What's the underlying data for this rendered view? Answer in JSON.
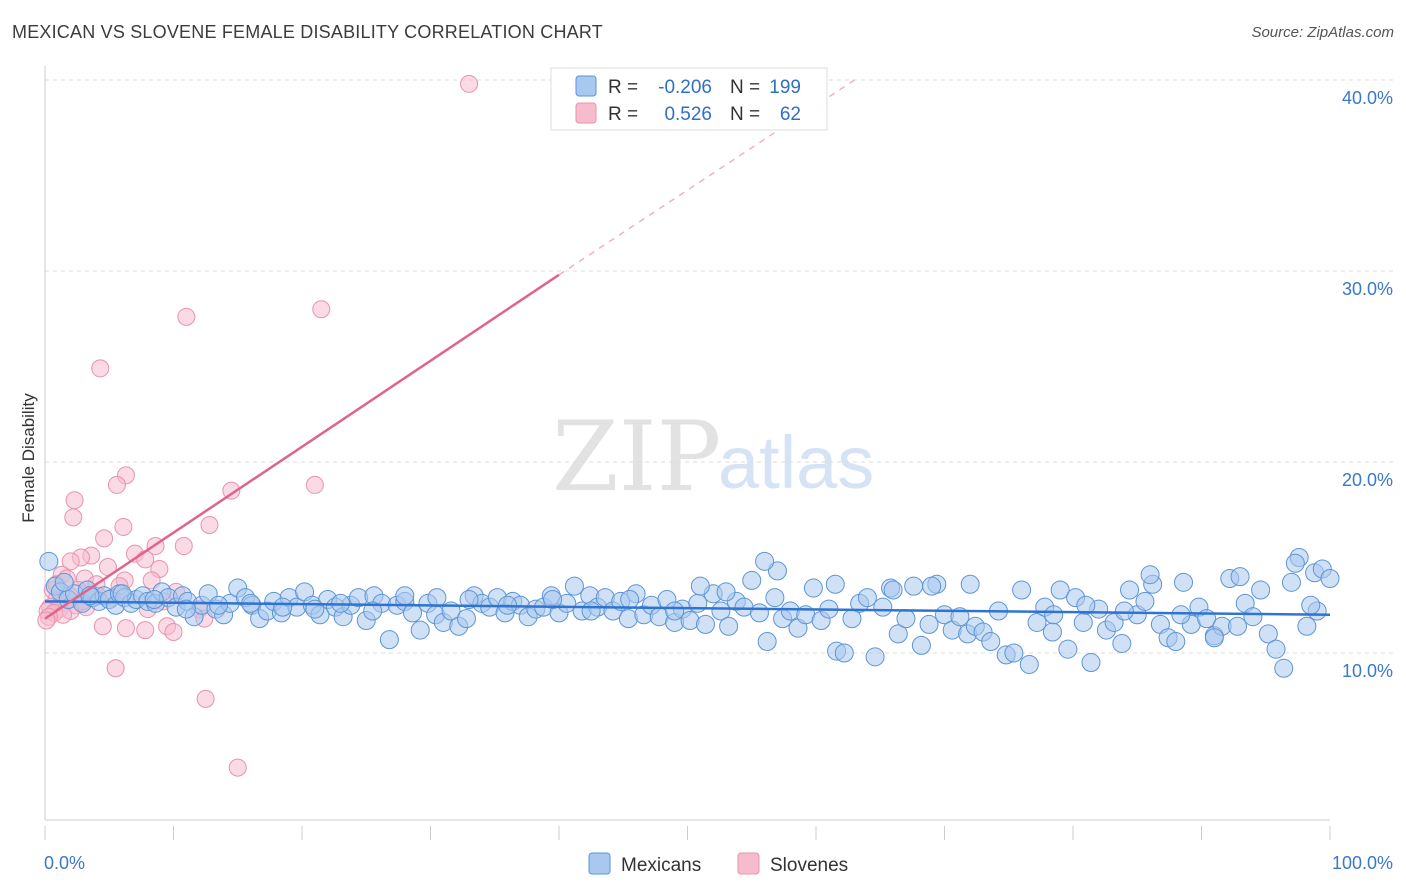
{
  "header": {
    "title": "MEXICAN VS SLOVENE FEMALE DISABILITY CORRELATION CHART",
    "source": "Source: ZipAtlas.com"
  },
  "watermark": {
    "zip": "ZIP",
    "atlas": "atlas"
  },
  "legend_box": {
    "row1": {
      "r_label": "R =",
      "r_value": "-0.206",
      "n_label": "N =",
      "n_value": "199"
    },
    "row2": {
      "r_label": "R =",
      "r_value": "0.526",
      "n_label": "N =",
      "n_value": "62"
    }
  },
  "bottom_legend": {
    "series1": "Mexicans",
    "series2": "Slovenes"
  },
  "colors": {
    "blue_fill": "#a9c8ef",
    "blue_stroke": "#5d95d6",
    "blue_line": "#2f74d0",
    "pink_fill": "#f6bccd",
    "pink_stroke": "#e893ad",
    "pink_line": "#e2628f",
    "tick_text": "#3a78c9"
  },
  "chart_data": {
    "type": "scatter",
    "title": "MEXICAN VS SLOVENE FEMALE DISABILITY CORRELATION CHART",
    "xlabel": "",
    "ylabel": "Female Disability",
    "xlim": [
      0,
      100
    ],
    "ylim": [
      3,
      42
    ],
    "x_tick_labels": [
      "0.0%",
      "100.0%"
    ],
    "y_ticks": [
      10,
      20,
      30,
      40
    ],
    "y_tick_labels": [
      "10.0%",
      "20.0%",
      "30.0%",
      "40.0%"
    ],
    "grid": true,
    "legend_position": "top-center",
    "series": [
      {
        "name": "Mexicans",
        "color": "#5d95d6",
        "R": -0.206,
        "N": 199,
        "trend": {
          "x": [
            0,
            100
          ],
          "y": [
            12.7,
            12.0
          ]
        },
        "points": [
          [
            0.3,
            14.8
          ],
          [
            0.8,
            13.5
          ],
          [
            1.2,
            13.2
          ],
          [
            1.8,
            12.8
          ],
          [
            2.3,
            13.1
          ],
          [
            2.9,
            12.6
          ],
          [
            3.3,
            13.3
          ],
          [
            3.7,
            12.9
          ],
          [
            4.2,
            12.7
          ],
          [
            4.6,
            13.0
          ],
          [
            5.0,
            12.8
          ],
          [
            5.5,
            12.5
          ],
          [
            5.8,
            13.1
          ],
          [
            6.2,
            12.9
          ],
          [
            6.7,
            12.6
          ],
          [
            7.1,
            12.8
          ],
          [
            7.6,
            13.0
          ],
          [
            8.0,
            12.7
          ],
          [
            8.6,
            12.6
          ],
          [
            9.1,
            13.2
          ],
          [
            9.6,
            12.9
          ],
          [
            10.2,
            12.4
          ],
          [
            10.7,
            13.0
          ],
          [
            11.1,
            12.7
          ],
          [
            11.6,
            11.9
          ],
          [
            12.2,
            12.5
          ],
          [
            12.7,
            13.1
          ],
          [
            13.3,
            12.3
          ],
          [
            13.9,
            12.0
          ],
          [
            14.4,
            12.6
          ],
          [
            15.0,
            13.4
          ],
          [
            15.6,
            12.9
          ],
          [
            16.1,
            12.5
          ],
          [
            16.7,
            11.8
          ],
          [
            17.3,
            12.2
          ],
          [
            17.8,
            12.7
          ],
          [
            18.4,
            12.1
          ],
          [
            19.0,
            12.9
          ],
          [
            19.6,
            12.4
          ],
          [
            20.2,
            13.2
          ],
          [
            20.8,
            12.5
          ],
          [
            21.4,
            12.0
          ],
          [
            22.0,
            12.8
          ],
          [
            22.6,
            12.4
          ],
          [
            23.2,
            11.9
          ],
          [
            23.8,
            12.5
          ],
          [
            24.4,
            12.9
          ],
          [
            25.0,
            11.7
          ],
          [
            25.6,
            13.0
          ],
          [
            26.2,
            12.6
          ],
          [
            26.8,
            10.7
          ],
          [
            27.4,
            12.5
          ],
          [
            28.0,
            12.7
          ],
          [
            28.6,
            12.1
          ],
          [
            29.2,
            11.2
          ],
          [
            29.8,
            12.6
          ],
          [
            30.4,
            12.0
          ],
          [
            31.0,
            11.6
          ],
          [
            31.6,
            12.2
          ],
          [
            32.2,
            11.4
          ],
          [
            32.8,
            11.8
          ],
          [
            33.4,
            13.0
          ],
          [
            34.0,
            12.6
          ],
          [
            34.6,
            12.4
          ],
          [
            35.2,
            12.9
          ],
          [
            35.8,
            12.1
          ],
          [
            36.4,
            12.7
          ],
          [
            37.0,
            12.5
          ],
          [
            37.6,
            11.9
          ],
          [
            38.2,
            12.3
          ],
          [
            38.8,
            12.4
          ],
          [
            39.4,
            13.0
          ],
          [
            40.0,
            12.1
          ],
          [
            40.6,
            12.6
          ],
          [
            41.2,
            13.5
          ],
          [
            41.8,
            12.2
          ],
          [
            42.4,
            13.0
          ],
          [
            43.0,
            12.4
          ],
          [
            43.6,
            12.9
          ],
          [
            44.2,
            12.2
          ],
          [
            44.8,
            12.7
          ],
          [
            45.4,
            11.8
          ],
          [
            46.0,
            13.1
          ],
          [
            46.6,
            12.0
          ],
          [
            47.2,
            12.5
          ],
          [
            47.8,
            11.9
          ],
          [
            48.4,
            12.8
          ],
          [
            49.0,
            11.6
          ],
          [
            49.6,
            12.3
          ],
          [
            50.2,
            11.7
          ],
          [
            50.8,
            12.6
          ],
          [
            51.4,
            11.5
          ],
          [
            52.0,
            13.1
          ],
          [
            52.6,
            12.2
          ],
          [
            53.2,
            11.4
          ],
          [
            53.8,
            12.7
          ],
          [
            54.4,
            12.4
          ],
          [
            55.0,
            13.8
          ],
          [
            55.6,
            12.1
          ],
          [
            56.2,
            10.6
          ],
          [
            56.8,
            12.9
          ],
          [
            57.4,
            11.8
          ],
          [
            58.0,
            12.2
          ],
          [
            58.6,
            11.3
          ],
          [
            59.2,
            12.0
          ],
          [
            59.8,
            13.4
          ],
          [
            60.4,
            11.7
          ],
          [
            61.0,
            12.3
          ],
          [
            61.6,
            10.1
          ],
          [
            62.2,
            10.0
          ],
          [
            62.8,
            11.8
          ],
          [
            63.4,
            12.6
          ],
          [
            64.0,
            12.9
          ],
          [
            64.6,
            9.8
          ],
          [
            65.2,
            12.4
          ],
          [
            65.8,
            13.4
          ],
          [
            66.4,
            11.0
          ],
          [
            67.0,
            11.8
          ],
          [
            67.6,
            13.5
          ],
          [
            68.2,
            10.4
          ],
          [
            68.8,
            11.5
          ],
          [
            69.4,
            13.6
          ],
          [
            70.0,
            12.0
          ],
          [
            70.6,
            11.2
          ],
          [
            71.2,
            11.9
          ],
          [
            71.8,
            11.0
          ],
          [
            72.4,
            11.4
          ],
          [
            73.0,
            11.1
          ],
          [
            73.6,
            10.6
          ],
          [
            74.2,
            12.2
          ],
          [
            74.8,
            9.9
          ],
          [
            75.4,
            10.0
          ],
          [
            76.0,
            13.3
          ],
          [
            76.6,
            9.4
          ],
          [
            77.2,
            11.6
          ],
          [
            77.8,
            12.4
          ],
          [
            78.4,
            11.1
          ],
          [
            79.0,
            13.3
          ],
          [
            79.6,
            10.2
          ],
          [
            80.2,
            12.9
          ],
          [
            80.8,
            11.6
          ],
          [
            81.4,
            9.5
          ],
          [
            82.0,
            12.3
          ],
          [
            82.6,
            11.2
          ],
          [
            83.2,
            11.6
          ],
          [
            83.8,
            10.5
          ],
          [
            84.4,
            13.3
          ],
          [
            85.0,
            12.0
          ],
          [
            85.6,
            12.7
          ],
          [
            86.2,
            13.6
          ],
          [
            86.8,
            11.5
          ],
          [
            87.4,
            10.8
          ],
          [
            88.0,
            10.6
          ],
          [
            88.6,
            13.7
          ],
          [
            89.2,
            11.5
          ],
          [
            89.8,
            12.4
          ],
          [
            90.4,
            11.8
          ],
          [
            91.0,
            10.9
          ],
          [
            91.6,
            11.4
          ],
          [
            92.2,
            13.9
          ],
          [
            92.8,
            11.4
          ],
          [
            93.4,
            12.6
          ],
          [
            94.0,
            11.9
          ],
          [
            94.6,
            13.3
          ],
          [
            95.2,
            11.0
          ],
          [
            95.8,
            10.2
          ],
          [
            96.4,
            9.2
          ],
          [
            97.0,
            13.7
          ],
          [
            97.6,
            15.0
          ],
          [
            98.2,
            11.4
          ],
          [
            98.8,
            14.2
          ],
          [
            99.4,
            14.4
          ],
          [
            100.0,
            13.9
          ],
          [
            99.0,
            12.2
          ],
          [
            98.5,
            12.5
          ],
          [
            97.3,
            14.7
          ],
          [
            93.0,
            14.0
          ],
          [
            91.0,
            10.8
          ],
          [
            88.4,
            12.0
          ],
          [
            86.0,
            14.1
          ],
          [
            84.0,
            12.2
          ],
          [
            81.0,
            12.5
          ],
          [
            78.5,
            12.0
          ],
          [
            72.0,
            13.6
          ],
          [
            69.0,
            13.5
          ],
          [
            66.0,
            13.3
          ],
          [
            61.5,
            13.6
          ],
          [
            57.0,
            14.3
          ],
          [
            56.0,
            14.8
          ],
          [
            53.0,
            13.2
          ],
          [
            51.0,
            13.5
          ],
          [
            49.0,
            12.2
          ],
          [
            45.5,
            12.8
          ],
          [
            42.5,
            12.2
          ],
          [
            39.5,
            12.8
          ],
          [
            36.0,
            12.5
          ],
          [
            33.0,
            12.8
          ],
          [
            30.5,
            12.9
          ],
          [
            28.0,
            13.0
          ],
          [
            25.5,
            12.2
          ],
          [
            23.0,
            12.6
          ],
          [
            21.0,
            12.3
          ],
          [
            18.5,
            12.4
          ],
          [
            16.0,
            12.6
          ],
          [
            13.5,
            12.5
          ],
          [
            11.0,
            12.3
          ],
          [
            8.5,
            12.8
          ],
          [
            6.0,
            13.1
          ],
          [
            3.5,
            13.0
          ],
          [
            1.5,
            13.7
          ]
        ]
      },
      {
        "name": "Slovenes",
        "color": "#e893ad",
        "R": 0.526,
        "N": 62,
        "trend": {
          "x": [
            0,
            40
          ],
          "y": [
            11.8,
            29.8
          ]
        },
        "trend_dashed": {
          "x": [
            40,
            63
          ],
          "y": [
            29.8,
            40.0
          ]
        },
        "points": [
          [
            33.0,
            39.8
          ],
          [
            21.5,
            28.0
          ],
          [
            11.0,
            27.6
          ],
          [
            4.3,
            24.9
          ],
          [
            6.3,
            19.3
          ],
          [
            5.6,
            18.8
          ],
          [
            21.0,
            18.8
          ],
          [
            14.5,
            18.5
          ],
          [
            2.3,
            18.0
          ],
          [
            2.2,
            17.1
          ],
          [
            12.8,
            16.7
          ],
          [
            6.1,
            16.6
          ],
          [
            4.6,
            16.0
          ],
          [
            10.8,
            15.6
          ],
          [
            8.6,
            15.6
          ],
          [
            7.0,
            15.2
          ],
          [
            3.6,
            15.1
          ],
          [
            2.8,
            15.0
          ],
          [
            7.8,
            14.9
          ],
          [
            2.0,
            14.8
          ],
          [
            4.9,
            14.5
          ],
          [
            8.9,
            14.4
          ],
          [
            1.3,
            14.1
          ],
          [
            3.1,
            13.9
          ],
          [
            6.2,
            13.8
          ],
          [
            8.3,
            13.8
          ],
          [
            4.0,
            13.6
          ],
          [
            5.8,
            13.5
          ],
          [
            0.6,
            13.3
          ],
          [
            2.6,
            13.3
          ],
          [
            10.2,
            13.2
          ],
          [
            1.9,
            13.0
          ],
          [
            3.8,
            12.9
          ],
          [
            5.2,
            12.9
          ],
          [
            0.9,
            12.8
          ],
          [
            1.5,
            12.6
          ],
          [
            2.4,
            12.5
          ],
          [
            0.4,
            12.4
          ],
          [
            3.2,
            12.4
          ],
          [
            1.1,
            12.3
          ],
          [
            8.0,
            12.3
          ],
          [
            12.0,
            12.3
          ],
          [
            0.2,
            12.2
          ],
          [
            2.0,
            12.2
          ],
          [
            0.7,
            12.1
          ],
          [
            1.4,
            12.0
          ],
          [
            0.3,
            11.9
          ],
          [
            12.4,
            11.8
          ],
          [
            4.5,
            11.4
          ],
          [
            9.5,
            11.4
          ],
          [
            6.3,
            11.3
          ],
          [
            7.8,
            11.2
          ],
          [
            10.0,
            11.1
          ],
          [
            5.5,
            9.2
          ],
          [
            12.5,
            7.6
          ],
          [
            15.0,
            4.0
          ],
          [
            0.1,
            11.7
          ],
          [
            0.9,
            13.6
          ],
          [
            1.7,
            13.9
          ],
          [
            2.9,
            12.7
          ],
          [
            4.1,
            13.0
          ],
          [
            9.2,
            12.7
          ]
        ]
      }
    ]
  }
}
